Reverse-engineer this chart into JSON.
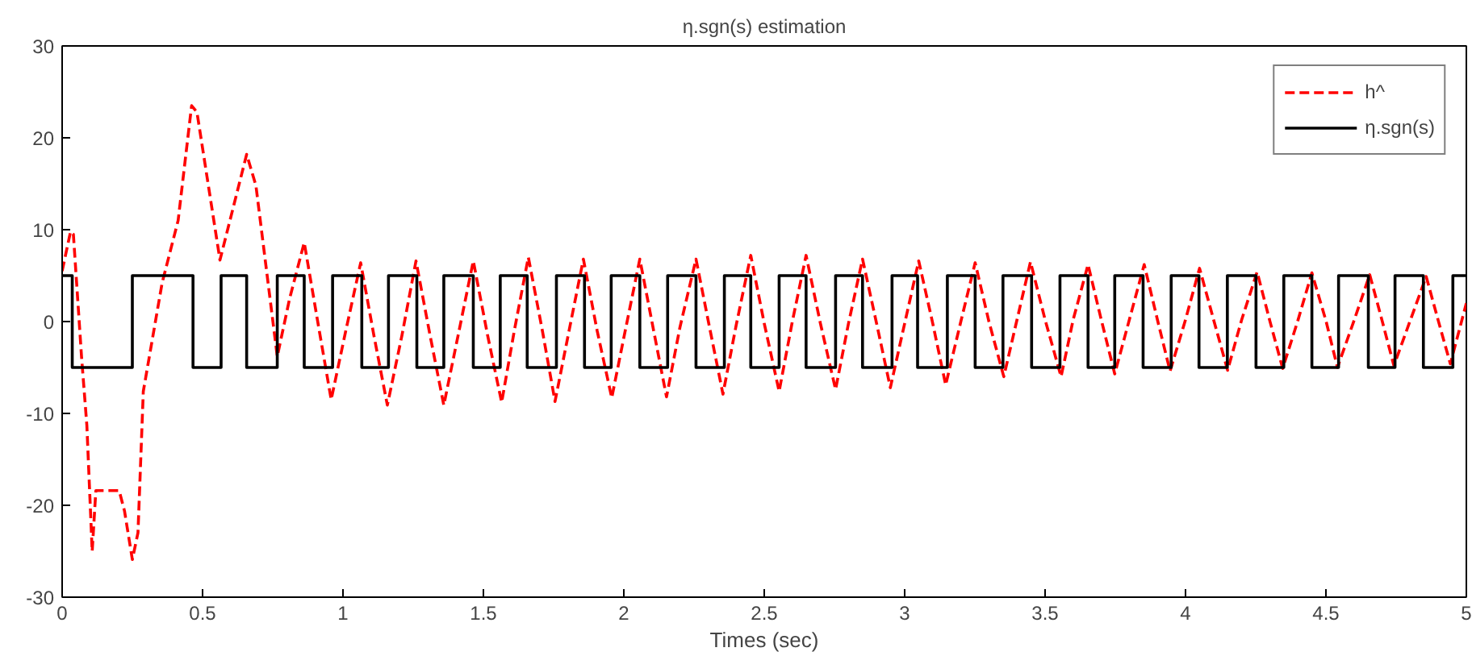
{
  "chart_data": {
    "type": "line",
    "title": "η.sgn(s) estimation",
    "xlabel": "Times (sec)",
    "xlim": [
      0,
      5
    ],
    "ylim": [
      -30,
      30
    ],
    "xticks": [
      0,
      0.5,
      1,
      1.5,
      2,
      2.5,
      3,
      3.5,
      4,
      4.5,
      5
    ],
    "yticks": [
      -30,
      -20,
      -10,
      0,
      10,
      20,
      30
    ],
    "grid": false,
    "legend": "top right",
    "marker": "none",
    "series": [
      {
        "name": "h^",
        "color": "#ff0000",
        "line_style": "dashed",
        "x": [
          0,
          0.03,
          0.04,
          0.069,
          0.088,
          0.107,
          0.12,
          0.203,
          0.222,
          0.25,
          0.27,
          0.289,
          0.356,
          0.413,
          0.461,
          0.48,
          0.562,
          0.657,
          0.69,
          0.766,
          0.81,
          0.862,
          0.91,
          0.958,
          1.01,
          1.063,
          1.11,
          1.158,
          1.21,
          1.26,
          1.31,
          1.359,
          1.41,
          1.464,
          1.515,
          1.565,
          1.61,
          1.66,
          1.71,
          1.755,
          1.805,
          1.856,
          1.905,
          1.957,
          2.005,
          2.057,
          2.105,
          2.152,
          2.2,
          2.257,
          2.305,
          2.353,
          2.4,
          2.452,
          2.5,
          2.553,
          2.6,
          2.649,
          2.7,
          2.754,
          2.8,
          2.85,
          2.9,
          2.949,
          3.0,
          3.05,
          3.1,
          3.146,
          3.2,
          3.251,
          3.3,
          3.353,
          3.4,
          3.448,
          3.5,
          3.557,
          3.6,
          3.653,
          3.7,
          3.748,
          3.8,
          3.853,
          3.9,
          3.945,
          4.0,
          4.05,
          4.1,
          4.15,
          4.2,
          4.255,
          4.3,
          4.346,
          4.4,
          4.45,
          4.5,
          4.541,
          4.6,
          4.656,
          4.7,
          4.742,
          4.8,
          4.857,
          4.9,
          4.943,
          5.0
        ],
        "values": [
          5.5,
          9.8,
          9.5,
          -3.8,
          -11.3,
          -25,
          -18.4,
          -18.4,
          -20.6,
          -25.9,
          -23,
          -7.6,
          4.2,
          11,
          23.5,
          22.8,
          6.7,
          18.2,
          14.8,
          -3.8,
          2.5,
          8.6,
          0,
          -8.5,
          -1,
          6.4,
          -1.5,
          -9.1,
          -1.5,
          6.6,
          -1.5,
          -9.1,
          -1.5,
          6.6,
          -1.5,
          -8.8,
          -1,
          7,
          -1,
          -8.7,
          -1,
          6.8,
          -1,
          -8.3,
          -1,
          6.8,
          -0.8,
          -8.2,
          -0.6,
          6.8,
          -0.6,
          -7.9,
          -0.4,
          7.2,
          -0.2,
          -7.6,
          0,
          7.2,
          -0.2,
          -7.4,
          -0.2,
          6.8,
          -0.2,
          -7.2,
          -0.2,
          6.6,
          -0.2,
          -6.9,
          0,
          6.4,
          0,
          -6.0,
          0.2,
          6.5,
          0.2,
          -6.0,
          0.2,
          6.2,
          0.2,
          -5.7,
          0.2,
          6.2,
          0.2,
          -5.4,
          0.2,
          5.8,
          0.2,
          -5.3,
          0.2,
          5.4,
          0.1,
          -5.1,
          0.1,
          5.3,
          0.1,
          -5.0,
          0.1,
          5.1,
          0.1,
          -4.8,
          0.1,
          4.9,
          0.1,
          -4.6,
          2
        ]
      },
      {
        "name": "η.sgn(s)",
        "color": "#000000",
        "type": "step",
        "line_style": "solid",
        "x": [
          0,
          0.036,
          0.25,
          0.466,
          0.566,
          0.657,
          0.766,
          0.862,
          0.963,
          1.067,
          1.162,
          1.263,
          1.359,
          1.464,
          1.56,
          1.656,
          1.76,
          1.86,
          1.955,
          2.057,
          2.156,
          2.257,
          2.358,
          2.452,
          2.553,
          2.649,
          2.754,
          2.85,
          2.955,
          3.046,
          3.152,
          3.251,
          3.35,
          3.452,
          3.553,
          3.653,
          3.748,
          3.849,
          3.949,
          4.048,
          4.149,
          4.251,
          4.35,
          4.45,
          4.545,
          4.651,
          4.746,
          4.847,
          4.952,
          5
        ],
        "values": [
          5,
          -5,
          5,
          -5,
          5,
          -5,
          5,
          -5,
          5,
          -5,
          5,
          -5,
          5,
          -5,
          5,
          -5,
          5,
          -5,
          5,
          -5,
          5,
          -5,
          5,
          -5,
          5,
          -5,
          5,
          -5,
          5,
          -5,
          5,
          -5,
          5,
          -5,
          5,
          -5,
          5,
          -5,
          5,
          -5,
          5,
          -5,
          5,
          -5,
          5,
          -5,
          5,
          -5,
          5,
          5
        ]
      }
    ]
  }
}
